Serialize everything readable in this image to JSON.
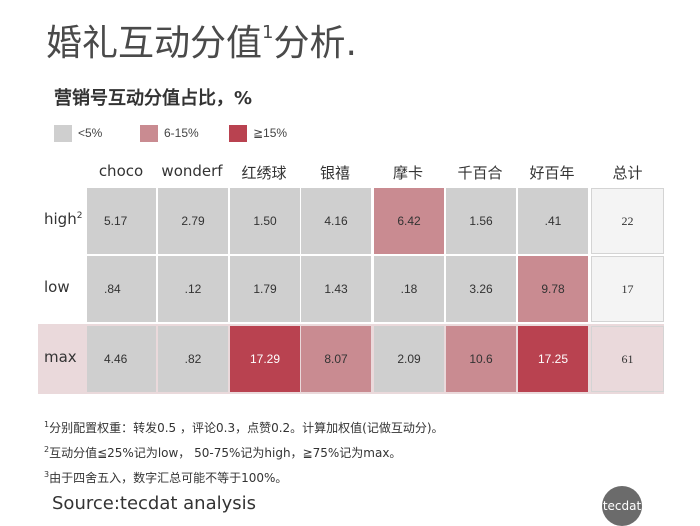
{
  "title": {
    "text": "婚礼互动分值",
    "sup": "1",
    "suffix": "分析."
  },
  "chart_data": {
    "type": "table",
    "title": "营销号互动分值占比，%",
    "legend": [
      {
        "label": "<5%",
        "color": "#cfcfcf"
      },
      {
        "label": "6-15%",
        "color": "#c98b91"
      },
      {
        "label": "≧15%",
        "color": "#b94250"
      }
    ],
    "columns": [
      "choco",
      "wonderf",
      "红绣球",
      "银禧",
      "摩卡",
      "千百合",
      "好百年"
    ],
    "total_label": "总计",
    "rows": [
      {
        "label": "high",
        "sup": "2",
        "values": [
          "5.17",
          "2.79",
          "1.50",
          "4.16",
          "6.42",
          "1.56",
          ".41"
        ],
        "levels": [
          0,
          0,
          0,
          0,
          1,
          0,
          0
        ],
        "total": "22"
      },
      {
        "label": "low",
        "sup": "",
        "values": [
          ".84",
          ".12",
          "1.79",
          "1.43",
          ".18",
          "3.26",
          "9.78"
        ],
        "levels": [
          0,
          0,
          0,
          0,
          0,
          0,
          1
        ],
        "total": "17"
      },
      {
        "label": "max",
        "sup": "",
        "values": [
          "4.46",
          ".82",
          "17.29",
          "8.07",
          "2.09",
          "10.6",
          "17.25"
        ],
        "levels": [
          0,
          0,
          2,
          1,
          0,
          1,
          2
        ],
        "total": "61"
      }
    ]
  },
  "notes": [
    {
      "sup": "1",
      "text": "分别配置权重：转发0.5 ，评论0.3，点赞0.2。计算加权值(记做互动分)。"
    },
    {
      "sup": "2",
      "text": "互动分值≦25%记为low， 50-75%记为high，≧75%记为max。"
    },
    {
      "sup": "3",
      "text": "由于四舍五入，数字汇总可能不等于100%。"
    }
  ],
  "source": "Source:tecdat analysis",
  "logo": "tecdat",
  "colors": {
    "low_band": "#cfcfcf",
    "mid_band": "#c98b91",
    "high_band": "#b94250",
    "max_row_band": "#ead9db",
    "total_cell": "#f4f4f4"
  }
}
